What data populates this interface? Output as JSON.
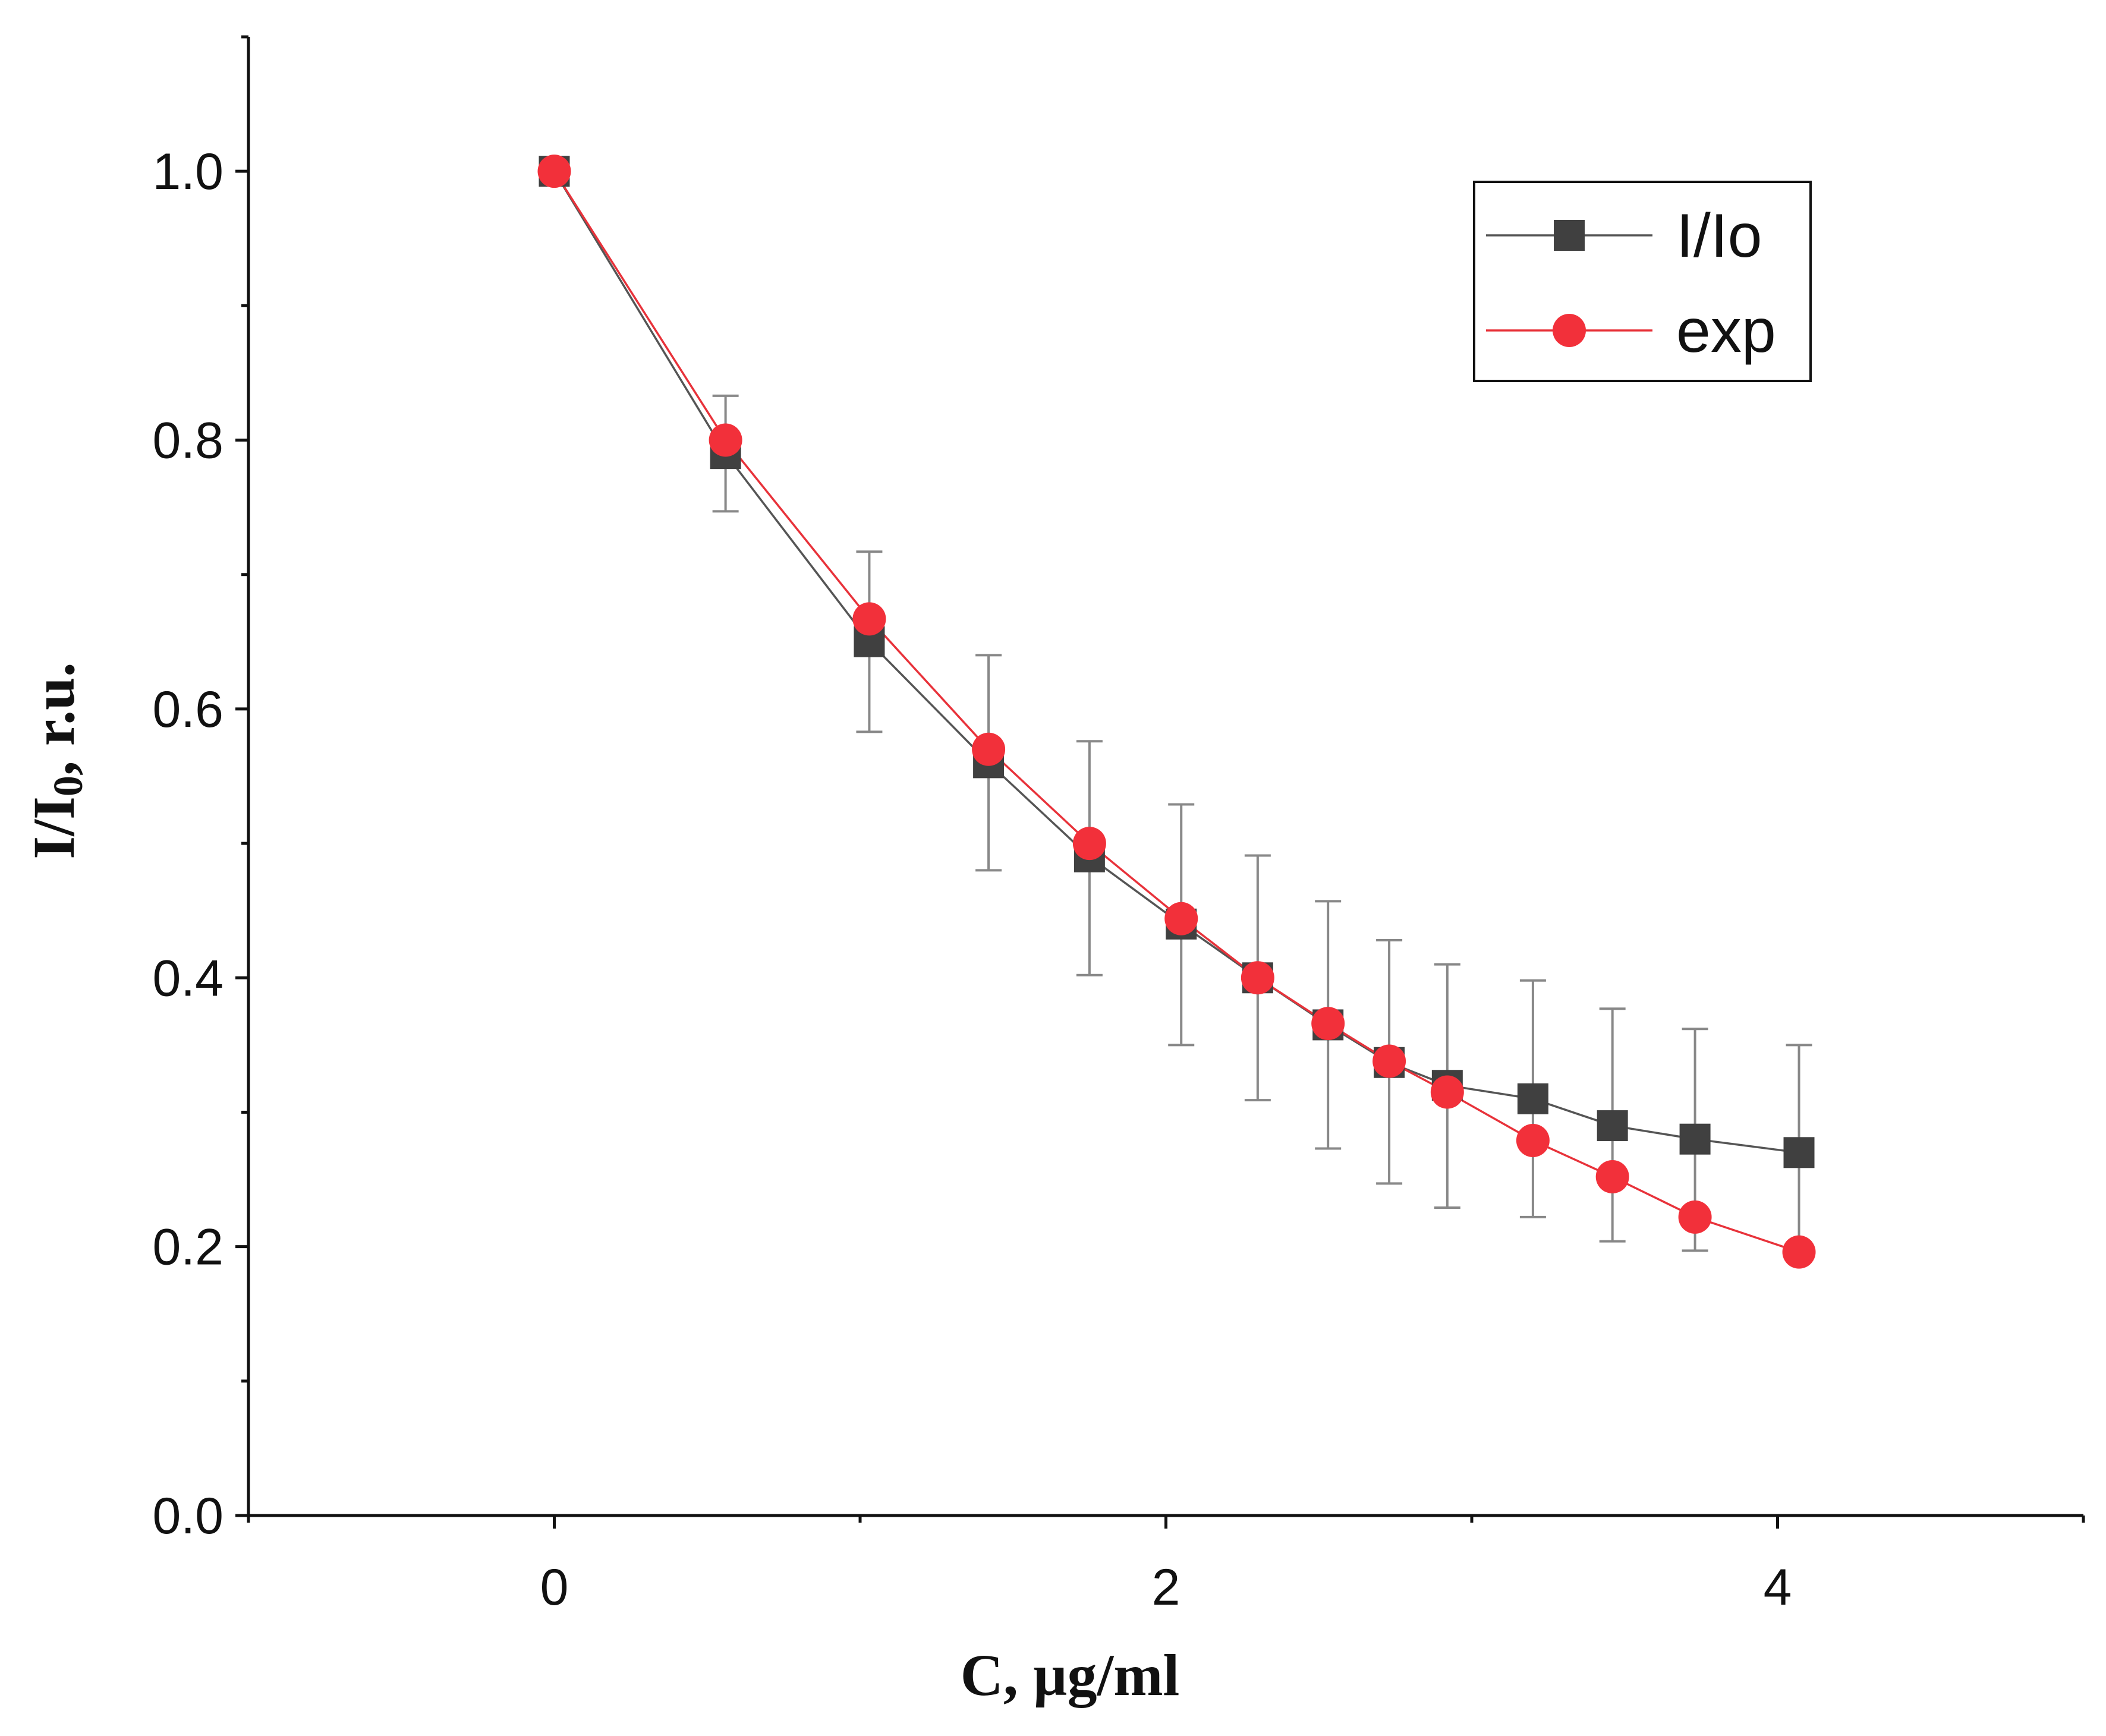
{
  "chart_data": {
    "type": "line",
    "title": "",
    "xlabel": "C, µg/ml",
    "ylabel_main": "I/I",
    "ylabel_sub": "0",
    "ylabel_rest": ", r.u.",
    "xlim": [
      -1,
      5
    ],
    "ylim": [
      0,
      1.1
    ],
    "xticks": [
      {
        "value": 0,
        "label": "0"
      },
      {
        "value": 2,
        "label": "2"
      },
      {
        "value": 4,
        "label": "4"
      }
    ],
    "xminor": [
      -1,
      1,
      3,
      5
    ],
    "yticks": [
      {
        "value": 0.0,
        "label": "0.0"
      },
      {
        "value": 0.2,
        "label": "0.2"
      },
      {
        "value": 0.4,
        "label": "0.4"
      },
      {
        "value": 0.6,
        "label": "0.6"
      },
      {
        "value": 0.8,
        "label": "0.8"
      },
      {
        "value": 1.0,
        "label": "1.0"
      }
    ],
    "yminor": [
      0.1,
      0.3,
      0.5,
      0.7,
      0.9,
      1.1
    ],
    "grid": false,
    "legend_position": "top-right",
    "series": [
      {
        "name": "I/Io",
        "color": "#404040",
        "line_color": "#555555",
        "marker": "square",
        "x": [
          0,
          0.56,
          1.03,
          1.42,
          1.75,
          2.05,
          2.3,
          2.53,
          2.73,
          2.92,
          3.2,
          3.46,
          3.73,
          4.07
        ],
        "y": [
          1.0,
          0.79,
          0.65,
          0.56,
          0.49,
          0.44,
          0.4,
          0.365,
          0.337,
          0.32,
          0.31,
          0.29,
          0.28,
          0.27
        ],
        "err_low": [
          1.0,
          0.747,
          0.583,
          0.48,
          0.402,
          0.35,
          0.309,
          0.273,
          0.247,
          0.229,
          0.222,
          0.204,
          0.197,
          0.19
        ],
        "err_high": [
          1.0,
          0.833,
          0.717,
          0.64,
          0.576,
          0.529,
          0.491,
          0.457,
          0.428,
          0.41,
          0.398,
          0.377,
          0.362,
          0.35
        ]
      },
      {
        "name": "exp",
        "color": "#f2303a",
        "line_color": "#e8323a",
        "marker": "circle",
        "x": [
          0,
          0.56,
          1.03,
          1.42,
          1.75,
          2.05,
          2.3,
          2.53,
          2.73,
          2.92,
          3.2,
          3.46,
          3.73,
          4.07
        ],
        "y": [
          1.0,
          0.8,
          0.667,
          0.57,
          0.5,
          0.444,
          0.4,
          0.366,
          0.338,
          0.315,
          0.279,
          0.252,
          0.222,
          0.196
        ]
      }
    ]
  }
}
